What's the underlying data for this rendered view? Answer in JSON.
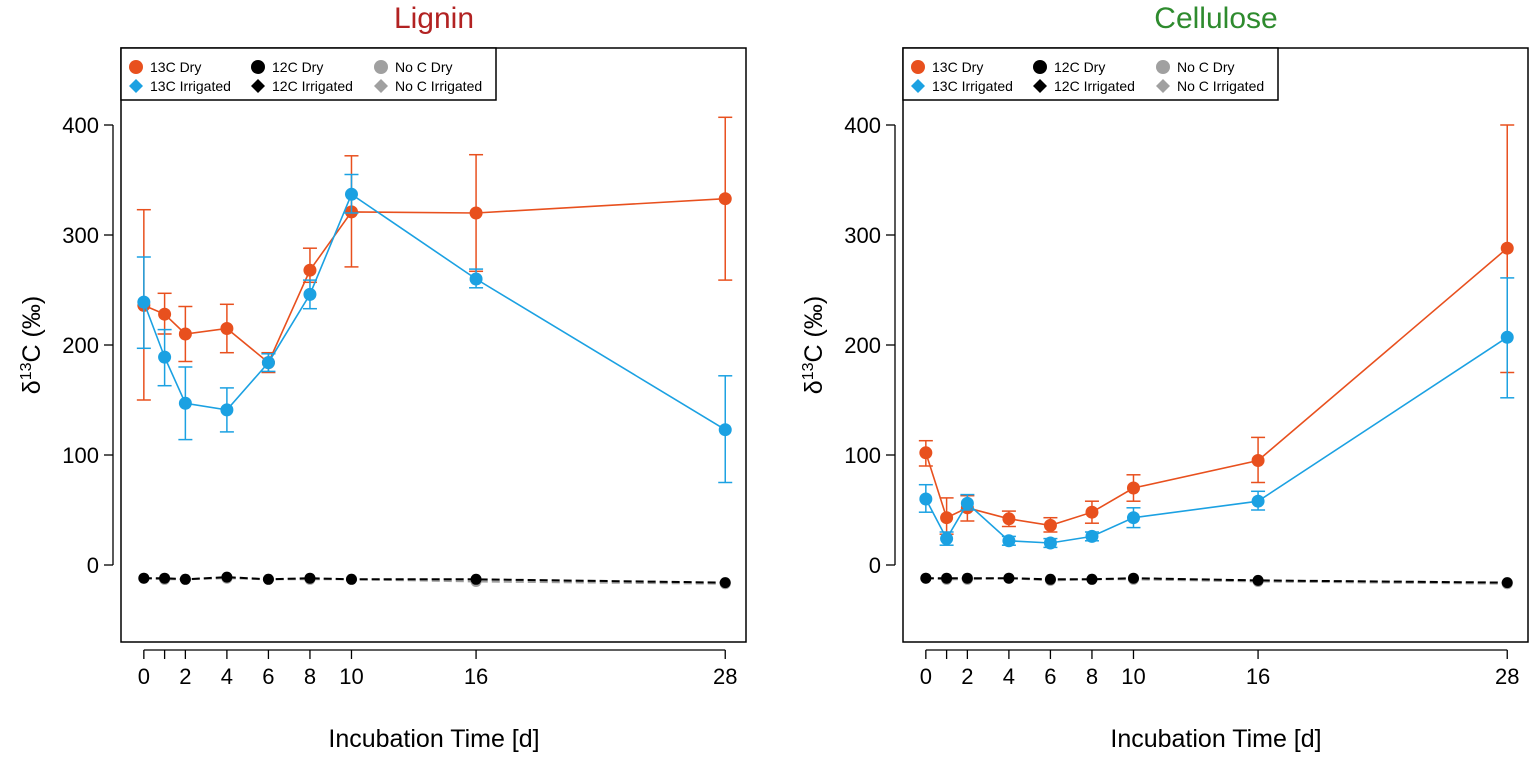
{
  "colors": {
    "c13_dry": "#E8501E",
    "c13_irr": "#1BA1E2",
    "c12": "#000000",
    "noc": "#A0A0A0",
    "title_lignin": "#B22222",
    "title_cellulose": "#2E8B2E"
  },
  "legend": {
    "items": [
      {
        "label": "13C Dry",
        "marker": "circle",
        "color": "#E8501E"
      },
      {
        "label": "13C Irrigated",
        "marker": "diamond",
        "color": "#1BA1E2"
      },
      {
        "label": "12C Dry",
        "marker": "circle",
        "color": "#000000"
      },
      {
        "label": "12C Irrigated",
        "marker": "diamond",
        "color": "#000000"
      },
      {
        "label": "No C Dry",
        "marker": "circle",
        "color": "#A0A0A0"
      },
      {
        "label": "No C Irrigated",
        "marker": "diamond",
        "color": "#A0A0A0"
      }
    ]
  },
  "chart_data": [
    {
      "type": "line",
      "title": "Lignin",
      "title_color": "#B22222",
      "xlabel": "Incubation Time [d]",
      "ylabel": "δ13C (‰)",
      "x_ticks": [
        0,
        2,
        4,
        6,
        8,
        10,
        16,
        28
      ],
      "y_ticks": [
        0,
        100,
        200,
        300,
        400
      ],
      "xlim": [
        -1.1,
        29.0
      ],
      "ylim": [
        -70,
        470
      ],
      "x": [
        0,
        1,
        2,
        4,
        6,
        8,
        10,
        16,
        28
      ],
      "series": [
        {
          "name": "13C Dry",
          "color": "#E8501E",
          "values": [
            236,
            228,
            210,
            215,
            184,
            268,
            321,
            320,
            333
          ],
          "err_low": [
            150,
            210,
            185,
            193,
            175,
            257,
            271,
            267,
            259
          ],
          "err_high": [
            323,
            247,
            235,
            237,
            193,
            288,
            372,
            373,
            407
          ]
        },
        {
          "name": "13C Irrigated",
          "color": "#1BA1E2",
          "values": [
            239,
            189,
            147,
            141,
            184,
            246,
            337,
            260,
            123
          ],
          "err_low": [
            197,
            163,
            114,
            121,
            176,
            233,
            320,
            252,
            75
          ],
          "err_high": [
            280,
            214,
            180,
            161,
            192,
            259,
            355,
            269,
            172
          ]
        },
        {
          "name": "12C",
          "color": "#000000",
          "values": [
            -12,
            -12,
            -13,
            -11,
            -13,
            -12,
            -13,
            -13,
            -16
          ]
        },
        {
          "name": "No C",
          "color": "#A0A0A0",
          "values": [
            -12,
            -13,
            -13,
            -12,
            -13,
            -13,
            -13,
            -15,
            -17
          ]
        }
      ]
    },
    {
      "type": "line",
      "title": "Cellulose",
      "title_color": "#2E8B2E",
      "xlabel": "Incubation Time [d]",
      "ylabel": "δ13C (‰)",
      "x_ticks": [
        0,
        2,
        4,
        6,
        8,
        10,
        16,
        28
      ],
      "y_ticks": [
        0,
        100,
        200,
        300,
        400
      ],
      "xlim": [
        -1.1,
        29.0
      ],
      "ylim": [
        -70,
        470
      ],
      "x": [
        0,
        1,
        2,
        4,
        6,
        8,
        10,
        16,
        28
      ],
      "series": [
        {
          "name": "13C Dry",
          "color": "#E8501E",
          "values": [
            102,
            43,
            52,
            42,
            36,
            48,
            70,
            95,
            288
          ],
          "err_low": [
            90,
            28,
            40,
            35,
            30,
            38,
            58,
            75,
            175
          ],
          "err_high": [
            113,
            61,
            63,
            49,
            43,
            58,
            82,
            116,
            400
          ]
        },
        {
          "name": "13C Irrigated",
          "color": "#1BA1E2",
          "values": [
            60,
            24,
            56,
            22,
            20,
            26,
            43,
            58,
            207
          ],
          "err_low": [
            48,
            18,
            50,
            18,
            16,
            22,
            34,
            50,
            152
          ],
          "err_high": [
            73,
            30,
            64,
            26,
            24,
            30,
            52,
            67,
            261
          ]
        },
        {
          "name": "12C",
          "color": "#000000",
          "values": [
            -12,
            -12,
            -12,
            -12,
            -13,
            -13,
            -12,
            -14,
            -16
          ]
        },
        {
          "name": "No C",
          "color": "#A0A0A0",
          "values": [
            -12,
            -13,
            -13,
            -12,
            -14,
            -13,
            -13,
            -15,
            -17
          ]
        }
      ]
    }
  ]
}
